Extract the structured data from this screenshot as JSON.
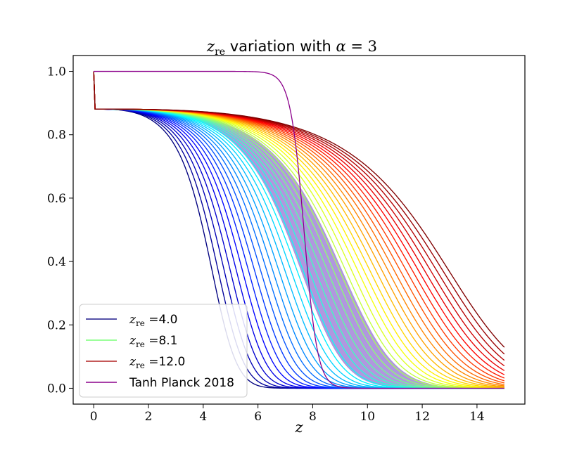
{
  "chart_data": {
    "type": "line",
    "title": {
      "var": "z",
      "sub": "re",
      "mid": " variation with ",
      "alpha": "α",
      "eq": " = 3"
    },
    "xlabel": "z",
    "ylabel": "",
    "xlim": [
      -0.75,
      15.75
    ],
    "ylim": [
      -0.05,
      1.05
    ],
    "xticks": [
      "0",
      "2",
      "4",
      "6",
      "8",
      "10",
      "12",
      "14"
    ],
    "yticks": [
      "0.0",
      "0.2",
      "0.4",
      "0.6",
      "0.8",
      "1.0"
    ],
    "alpha": 3,
    "z_max": 15,
    "family": {
      "description_key": "curve family x_e(z) for z_re from 4.0 to 12.0, alpha = 3",
      "z_re_min": 4.0,
      "z_re_max": 12.0,
      "count": 40,
      "colormap": "jet"
    },
    "planck": {
      "name": "Tanh Planck 2018",
      "z_re": 7.68,
      "delta_z": 0.5,
      "band": [
        7.0,
        8.4
      ],
      "color": "#8b008b",
      "band_color": "#7b52c9"
    },
    "legend": {
      "position": "lower-left",
      "entries": [
        {
          "var": "z",
          "sub": "re",
          "text": " =4.0",
          "color": "#1f1a8c"
        },
        {
          "var": "z",
          "sub": "re",
          "text": " =8.1",
          "color": "#7cff7a"
        },
        {
          "var": "z",
          "sub": "re",
          "text": " =12.0",
          "color": "#b22222"
        },
        {
          "var": "",
          "sub": "",
          "text": "Tanh Planck 2018",
          "color": "#8b008b"
        }
      ]
    }
  }
}
